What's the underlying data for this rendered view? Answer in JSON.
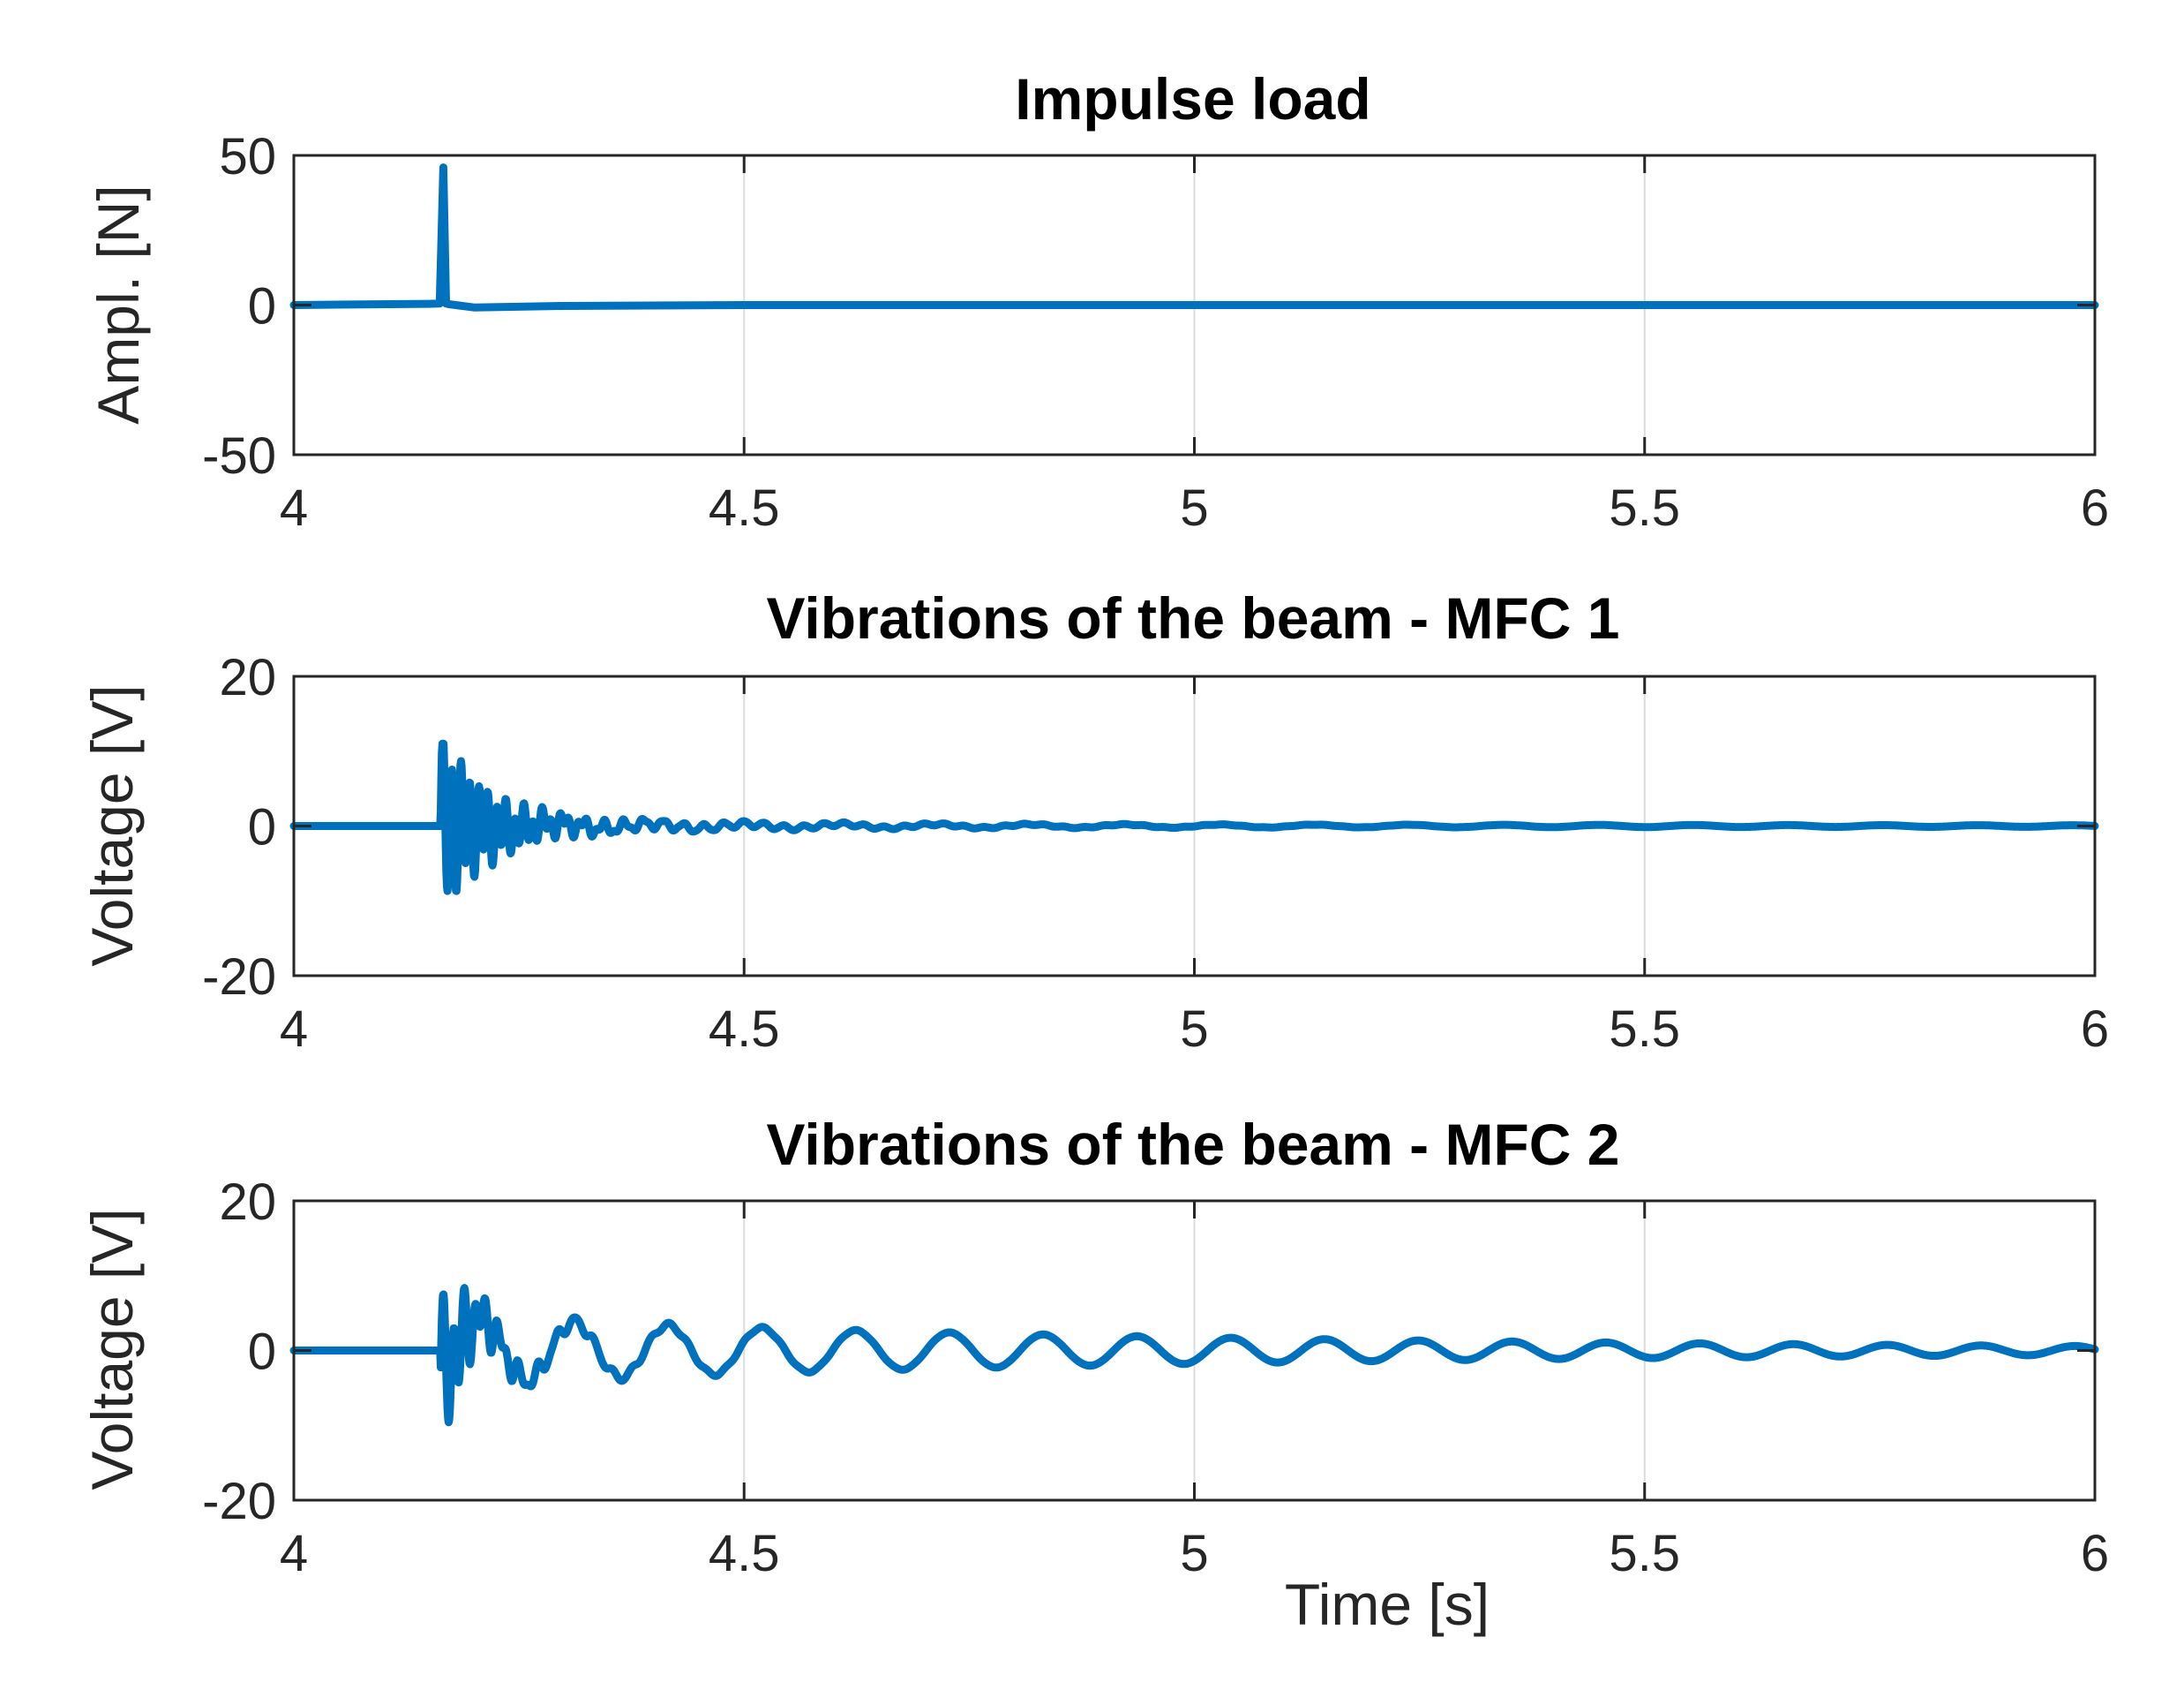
{
  "chart_data": [
    {
      "type": "line",
      "title": "Impulse load",
      "xlabel": "",
      "ylabel": "Ampl. [N]",
      "xlim": [
        4,
        6
      ],
      "ylim": [
        -50,
        50
      ],
      "xticks": [
        4,
        4.5,
        5,
        5.5,
        6
      ],
      "xtick_labels": [
        "4",
        "4.5",
        "5",
        "5.5",
        "6"
      ],
      "yticks": [
        50,
        0,
        -50
      ],
      "ytick_labels": [
        "50",
        "0",
        "-50"
      ],
      "grid": "x",
      "series": [
        {
          "name": "Impulse load",
          "color": "#0072bd",
          "x": [
            4.0,
            4.15,
            4.162,
            4.166,
            4.169,
            4.172,
            4.2,
            4.3,
            4.5,
            6.0
          ],
          "y": [
            0.0,
            0.4,
            0.5,
            46.0,
            0.5,
            0.3,
            -0.8,
            -0.3,
            0.0,
            0.0
          ]
        }
      ]
    },
    {
      "type": "line",
      "title": "Vibrations of the beam - MFC 1",
      "xlabel": "",
      "ylabel": "Voltage [V]",
      "xlim": [
        4,
        6
      ],
      "ylim": [
        -20,
        20
      ],
      "xticks": [
        4,
        4.5,
        5,
        5.5,
        6
      ],
      "xtick_labels": [
        "4",
        "4.5",
        "5",
        "5.5",
        "6"
      ],
      "yticks": [
        20,
        0,
        -20
      ],
      "ytick_labels": [
        "20",
        "0",
        "-20"
      ],
      "grid": "x",
      "series": [
        {
          "name": "MFC 1",
          "color": "#0072bd",
          "generator": {
            "t0": 4.163,
            "components": [
              {
                "A": 11.0,
                "f": 100,
                "tau": 0.055,
                "phase": 0
              },
              {
                "A": 1.8,
                "f": 45,
                "tau": 0.22,
                "phase": 0.6
              },
              {
                "A": 0.35,
                "f": 9.5,
                "tau": 1.5,
                "phase": 0.2
              }
            ],
            "clip": 11.0
          }
        }
      ]
    },
    {
      "type": "line",
      "title": "Vibrations of the beam - MFC 2",
      "xlabel": "Time [s]",
      "ylabel": "Voltage [V]",
      "xlim": [
        4,
        6
      ],
      "ylim": [
        -20,
        20
      ],
      "xticks": [
        4,
        4.5,
        5,
        5.5,
        6
      ],
      "xtick_labels": [
        "4",
        "4.5",
        "5",
        "5.5",
        "6"
      ],
      "yticks": [
        20,
        0,
        -20
      ],
      "ytick_labels": [
        "20",
        "0",
        "-20"
      ],
      "grid": "x",
      "series": [
        {
          "name": "MFC 2",
          "color": "#0072bd",
          "generator": {
            "t0": 4.163,
            "components": [
              {
                "A": 9.5,
                "f": 85,
                "tau": 0.035,
                "phase": 0
              },
              {
                "A": 2.6,
                "f": 48,
                "tau": 0.12,
                "phase": 0.4
              },
              {
                "A": 4.5,
                "f": 9.6,
                "tau": 0.9,
                "phase": -1.1
              }
            ],
            "clip": 11.0
          }
        }
      ]
    }
  ]
}
